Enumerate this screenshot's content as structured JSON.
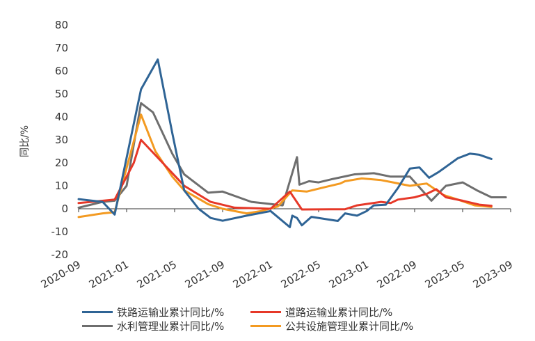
{
  "chart_data": {
    "type": "line",
    "xlabel": "",
    "ylabel": "同比/%",
    "ylim": [
      -20,
      80
    ],
    "yticks": [
      "80",
      "70",
      "60",
      "50",
      "40",
      "30",
      "20",
      "10",
      "0",
      "-10",
      "-20"
    ],
    "xticks": [
      "2020-09",
      "2021-01",
      "2021-05",
      "2021-09",
      "2022-01",
      "2022-05",
      "2023-01",
      "2022-09",
      "2023-05",
      "2023-09"
    ],
    "grid": false,
    "legend_position": "bottom",
    "series": [
      {
        "name": "铁路运输业累计同比/%",
        "color": "#2f6495",
        "points": [
          [
            0,
            4.2
          ],
          [
            1,
            3
          ],
          [
            1.5,
            -2.5
          ],
          [
            2.6,
            52
          ],
          [
            3.3,
            65
          ],
          [
            3.9,
            33
          ],
          [
            4.4,
            8
          ],
          [
            5,
            0
          ],
          [
            5.5,
            -4
          ],
          [
            6,
            -5.2
          ],
          [
            7,
            -3
          ],
          [
            8,
            -1
          ],
          [
            8.8,
            -8
          ],
          [
            8.9,
            -3
          ],
          [
            9.1,
            -4
          ],
          [
            9.3,
            -7.2
          ],
          [
            9.7,
            -3.5
          ],
          [
            10.8,
            -5.3
          ],
          [
            11.1,
            -2
          ],
          [
            11.6,
            -3
          ],
          [
            12,
            -1
          ],
          [
            12.3,
            1.5
          ],
          [
            12.8,
            1.8
          ],
          [
            13.3,
            9
          ],
          [
            13.8,
            17.5
          ],
          [
            14.2,
            18
          ],
          [
            14.6,
            13.5
          ],
          [
            15,
            16
          ],
          [
            15.4,
            19
          ],
          [
            15.8,
            22
          ],
          [
            16.3,
            24
          ],
          [
            16.7,
            23.5
          ],
          [
            17.2,
            21.7
          ]
        ]
      },
      {
        "name": "道路运输业累计同比/%",
        "color": "#e63828",
        "points": [
          [
            0,
            2.5
          ],
          [
            1.5,
            4
          ],
          [
            2.3,
            20
          ],
          [
            2.6,
            30
          ],
          [
            3.5,
            20
          ],
          [
            4.4,
            10
          ],
          [
            5.5,
            3
          ],
          [
            6.5,
            0.5
          ],
          [
            8,
            0
          ],
          [
            8.8,
            7.5
          ],
          [
            9.3,
            -0.3
          ],
          [
            10.5,
            -0.2
          ],
          [
            11.1,
            -0.2
          ],
          [
            11.6,
            1.5
          ],
          [
            12.6,
            3
          ],
          [
            13,
            2.5
          ],
          [
            13.3,
            4
          ],
          [
            14,
            5
          ],
          [
            14.5,
            6.5
          ],
          [
            14.9,
            8.5
          ],
          [
            15.3,
            5
          ],
          [
            16,
            3.5
          ],
          [
            16.7,
            1.8
          ],
          [
            17.2,
            1.3
          ]
        ]
      },
      {
        "name": "水利管理业累计同比/%",
        "color": "#6e6e6e",
        "points": [
          [
            0,
            0.5
          ],
          [
            1,
            3
          ],
          [
            1.5,
            3.5
          ],
          [
            2,
            10
          ],
          [
            2.6,
            46
          ],
          [
            3.1,
            42
          ],
          [
            3.9,
            24
          ],
          [
            4.4,
            15
          ],
          [
            5.4,
            7
          ],
          [
            6,
            7.5
          ],
          [
            7.2,
            3
          ],
          [
            8.5,
            1.5
          ],
          [
            9.1,
            22.5
          ],
          [
            9.2,
            10.5
          ],
          [
            9.6,
            12
          ],
          [
            10,
            11.5
          ],
          [
            10.6,
            13
          ],
          [
            11.5,
            15
          ],
          [
            12.3,
            15.5
          ],
          [
            13,
            14
          ],
          [
            13.8,
            14
          ],
          [
            14.7,
            3.5
          ],
          [
            15.3,
            10
          ],
          [
            16,
            11.5
          ],
          [
            16.6,
            8
          ],
          [
            17.2,
            5
          ],
          [
            17.8,
            5
          ]
        ]
      },
      {
        "name": "公共设施管理业累计同比/%",
        "color": "#f39a21",
        "points": [
          [
            0,
            -3.6
          ],
          [
            1,
            -2
          ],
          [
            1.5,
            -1.5
          ],
          [
            2.6,
            41
          ],
          [
            3.2,
            25
          ],
          [
            3.9,
            14
          ],
          [
            4.4,
            8
          ],
          [
            5.4,
            2
          ],
          [
            6,
            0
          ],
          [
            7,
            -2
          ],
          [
            7.6,
            -1
          ],
          [
            8.3,
            1
          ],
          [
            8.9,
            8
          ],
          [
            9.5,
            7.5
          ],
          [
            10.3,
            9.5
          ],
          [
            10.9,
            11
          ],
          [
            11.1,
            12
          ],
          [
            11.8,
            13.2
          ],
          [
            12.6,
            12.5
          ],
          [
            13.1,
            11.5
          ],
          [
            13.8,
            10
          ],
          [
            14.5,
            11
          ],
          [
            15.2,
            6
          ],
          [
            15.8,
            4
          ],
          [
            16.5,
            1.5
          ],
          [
            17.2,
            0.8
          ]
        ]
      }
    ]
  }
}
